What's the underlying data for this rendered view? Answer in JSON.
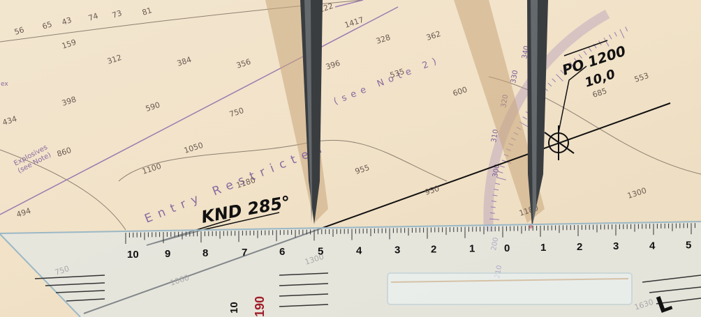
{
  "chart": {
    "restricted_area_label": "Entry Restricted",
    "note_ref": "(see Note 2)",
    "explosives_label": "Explosives\n(see Note)",
    "depths": [
      "56",
      "65",
      "43",
      "74",
      "73",
      "81",
      "122",
      "159",
      "312",
      "384",
      "356",
      "396",
      "328",
      "362",
      "535",
      "398",
      "590",
      "750",
      "600",
      "685",
      "553",
      "434",
      "860",
      "1100",
      "1050",
      "1180",
      "955",
      "950",
      "1300",
      "1180",
      "1300",
      "494",
      "1417",
      "1630",
      "750",
      "1060"
    ]
  },
  "handwriting": {
    "course_label": "KND 285°",
    "position_label": "PO 1200",
    "speed_label": "10,0"
  },
  "ruler": {
    "left_numbers": [
      "10",
      "9",
      "8",
      "7",
      "6",
      "5",
      "4",
      "3",
      "2",
      "1",
      "0"
    ],
    "right_numbers": [
      "1",
      "2",
      "3",
      "4",
      "5"
    ],
    "extra_marks": [
      "10",
      "190",
      "L"
    ]
  },
  "compass_rose": {
    "labels": [
      "300",
      "310",
      "320",
      "330",
      "340",
      "200",
      "210"
    ]
  },
  "colors": {
    "paper": "#f1e2c8",
    "chart_purple": "#8a6aa0",
    "pencil": "#111111",
    "steel": "#3a3d40"
  }
}
